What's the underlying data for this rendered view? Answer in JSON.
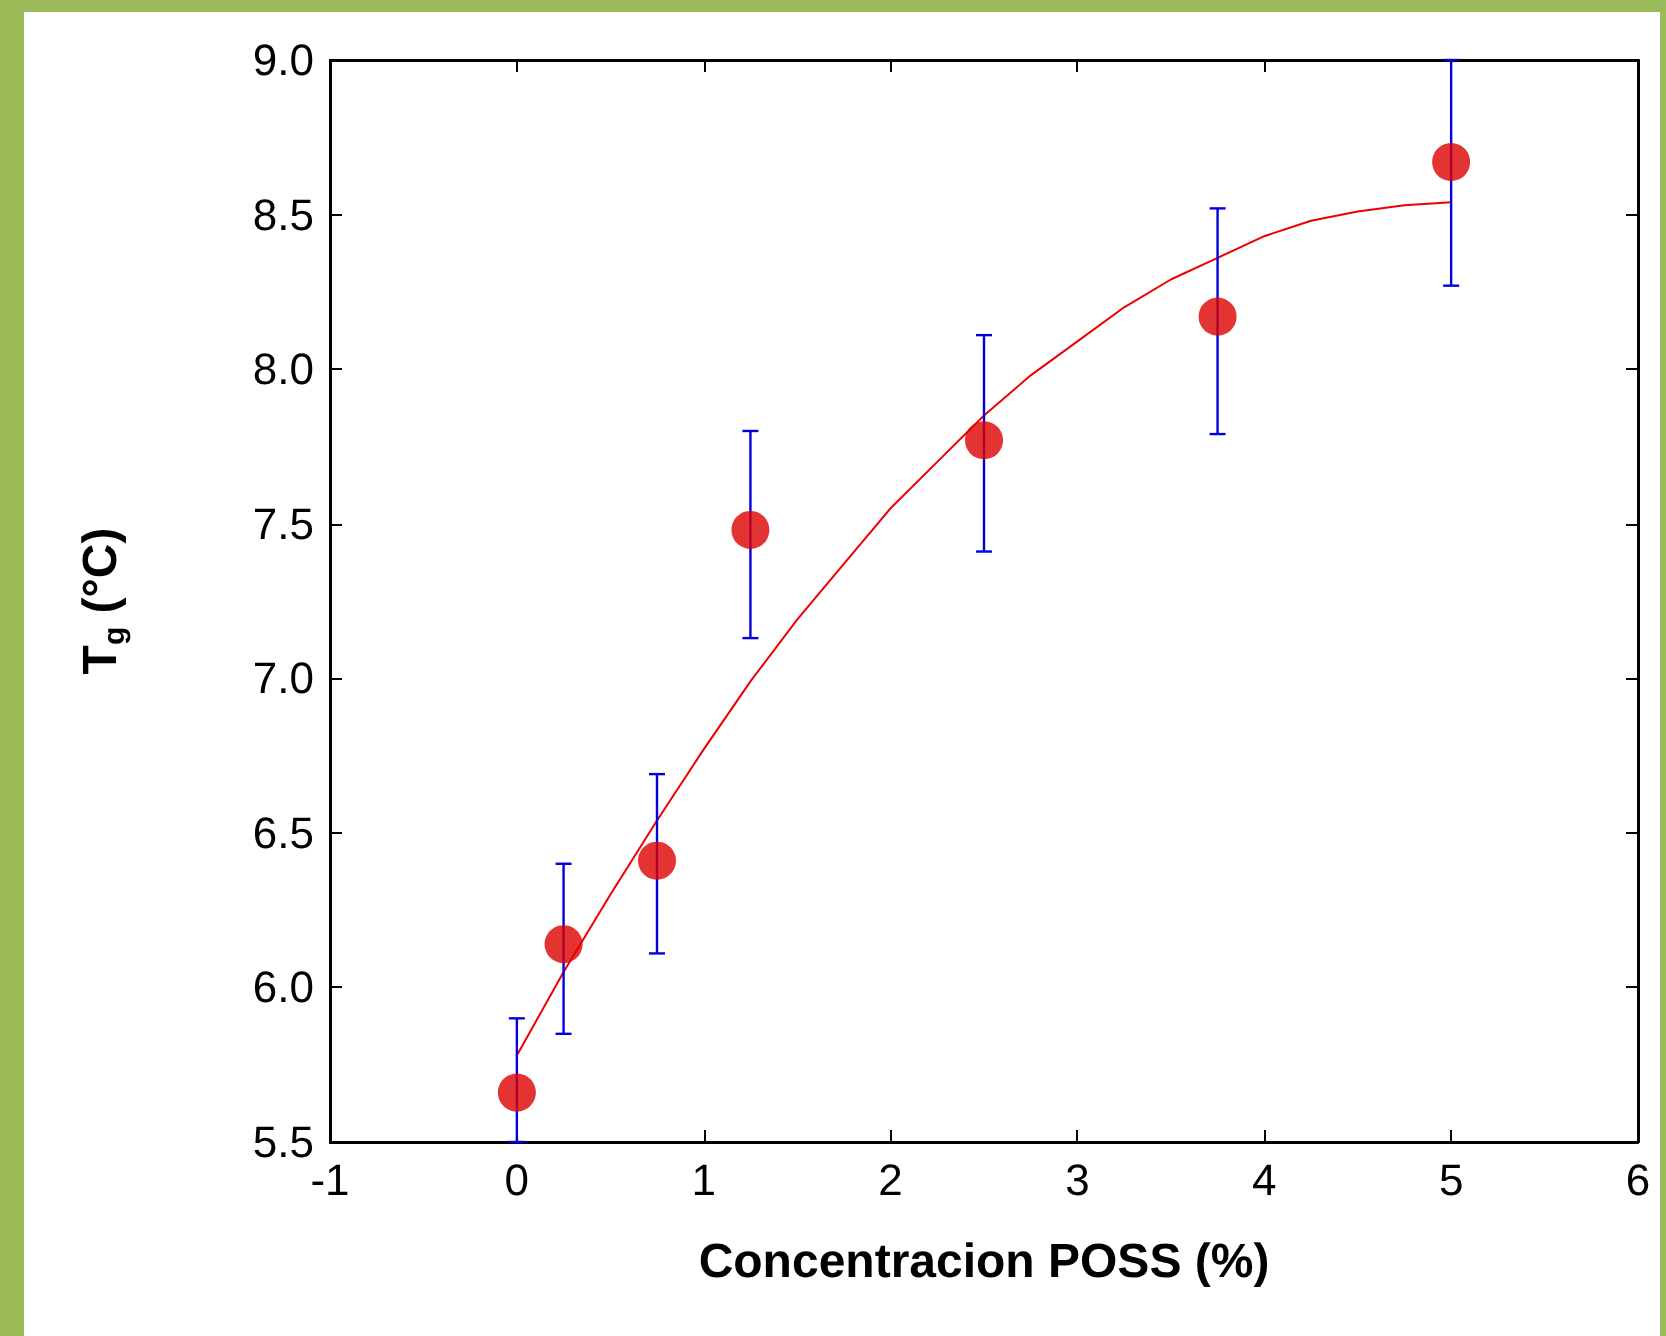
{
  "chart_data": {
    "type": "scatter",
    "xlabel": "Concentracion POSS (%)",
    "ylabel": "T$_{g}$ (°C)",
    "xlim": [
      -1,
      6
    ],
    "xticks": [
      -1,
      0,
      1,
      2,
      3,
      4,
      5,
      6
    ],
    "ylim": [
      5.5,
      9.0
    ],
    "yticks": [
      {
        "value": 5.5,
        "label": "5.5"
      },
      {
        "value": 6.0,
        "label": "6.0"
      },
      {
        "value": 6.5,
        "label": "6.5"
      },
      {
        "value": 7.0,
        "label": "7.0"
      },
      {
        "value": 7.5,
        "label": "7.5"
      },
      {
        "value": 8.0,
        "label": "8.0"
      },
      {
        "value": 8.5,
        "label": "8.5"
      },
      {
        "value": 9.0,
        "label": "9.0"
      }
    ],
    "grid": false,
    "marker": "circle",
    "series": [
      {
        "color": "#dd0000",
        "x": [
          0,
          0.25,
          0.75,
          1.25,
          2.5,
          3.75,
          5
        ],
        "values": [
          5.66,
          6.14,
          6.41,
          7.48,
          7.77,
          8.17,
          8.67
        ],
        "errors": [
          [
            5.5,
            5.9
          ],
          [
            5.85,
            6.4
          ],
          [
            6.11,
            6.69
          ],
          [
            7.13,
            7.8
          ],
          [
            7.41,
            8.11
          ],
          [
            7.79,
            8.52
          ],
          [
            8.27,
            9.0
          ]
        ]
      },
      {
        "type": "line",
        "color": "#ee0000",
        "marker": "none",
        "line_style": "solid",
        "x": [
          0,
          0.25,
          0.5,
          0.75,
          1,
          1.25,
          1.5,
          1.75,
          2,
          2.25,
          2.5,
          2.75,
          3,
          3.25,
          3.5,
          3.75,
          4,
          4.25,
          4.5,
          4.75,
          5
        ],
        "values": [
          5.78,
          6.05,
          6.3,
          6.54,
          6.77,
          6.99,
          7.19,
          7.37,
          7.55,
          7.7,
          7.85,
          7.98,
          8.09,
          8.2,
          8.29,
          8.36,
          8.43,
          8.48,
          8.51,
          8.53,
          8.54
        ]
      }
    ]
  }
}
